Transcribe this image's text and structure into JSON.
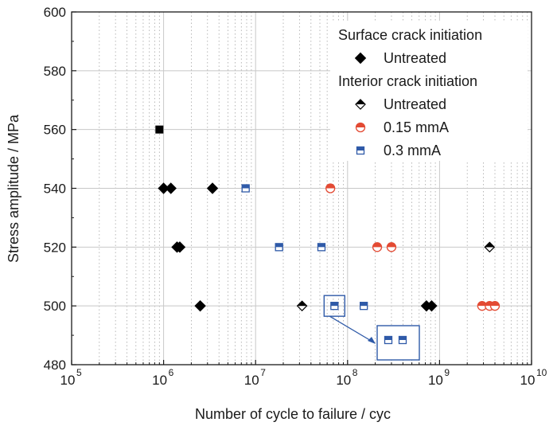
{
  "chart_data": {
    "type": "scatter",
    "x_scale": "log",
    "xlabel": "Number of cycle to failure / cyc",
    "ylabel": "Stress amplitude / MPa",
    "xlim": [
      100000,
      10000000000
    ],
    "ylim": [
      480,
      600
    ],
    "x_ticks": [
      {
        "value": 100000,
        "base": "10",
        "exp": "5"
      },
      {
        "value": 1000000,
        "base": "10",
        "exp": "6"
      },
      {
        "value": 10000000,
        "base": "10",
        "exp": "7"
      },
      {
        "value": 100000000,
        "base": "10",
        "exp": "8"
      },
      {
        "value": 1000000000,
        "base": "10",
        "exp": "9"
      },
      {
        "value": 10000000000,
        "base": "10",
        "exp": "10"
      }
    ],
    "y_ticks": [
      480,
      500,
      520,
      540,
      560,
      580,
      600
    ],
    "grid": true,
    "legend_position": "top-right",
    "legend_groups": [
      {
        "title": "Surface crack initiation",
        "entries": [
          {
            "series": 0
          }
        ]
      },
      {
        "title": "Interior crack initiation",
        "entries": [
          {
            "series": 1
          },
          {
            "series": 2
          },
          {
            "series": 3
          }
        ]
      }
    ],
    "series": [
      {
        "name": "Untreated",
        "marker": "diamond-filled",
        "color": "#000000",
        "points": [
          {
            "x": 1000000,
            "y": 540
          },
          {
            "x": 1200000,
            "y": 540
          },
          {
            "x": 3400000,
            "y": 540
          },
          {
            "x": 1400000,
            "y": 520
          },
          {
            "x": 1500000,
            "y": 520
          },
          {
            "x": 2500000,
            "y": 500
          },
          {
            "x": 720000000,
            "y": 500
          },
          {
            "x": 820000000,
            "y": 500
          }
        ]
      },
      {
        "name": "Untreated",
        "marker": "diamond-half",
        "color": "#000000",
        "points": [
          {
            "x": 32000000,
            "y": 500
          },
          {
            "x": 3500000000,
            "y": 520
          }
        ]
      },
      {
        "name": "0.15 mmA",
        "marker": "circle-half",
        "color": "#e34a33",
        "points": [
          {
            "x": 65000000,
            "y": 540
          },
          {
            "x": 210000000,
            "y": 520
          },
          {
            "x": 300000000,
            "y": 520
          },
          {
            "x": 2900000000,
            "y": 500
          },
          {
            "x": 3500000000,
            "y": 500
          },
          {
            "x": 4000000000,
            "y": 500
          }
        ]
      },
      {
        "name": "0.3 mmA",
        "marker": "square-half",
        "color": "#2f5aa8",
        "points": [
          {
            "x": 7800000,
            "y": 540
          },
          {
            "x": 18000000,
            "y": 520
          },
          {
            "x": 52000000,
            "y": 520
          },
          {
            "x": 72000000,
            "y": 500
          },
          {
            "x": 150000000,
            "y": 500
          }
        ]
      }
    ],
    "extra_points": [
      {
        "x": 900000,
        "y": 560,
        "marker": "square-filled",
        "color": "#000000"
      }
    ],
    "inset": {
      "highlight_point": {
        "x": 72000000,
        "y": 500
      },
      "zoom_markers": 2,
      "color": "#2f5aa8"
    }
  }
}
